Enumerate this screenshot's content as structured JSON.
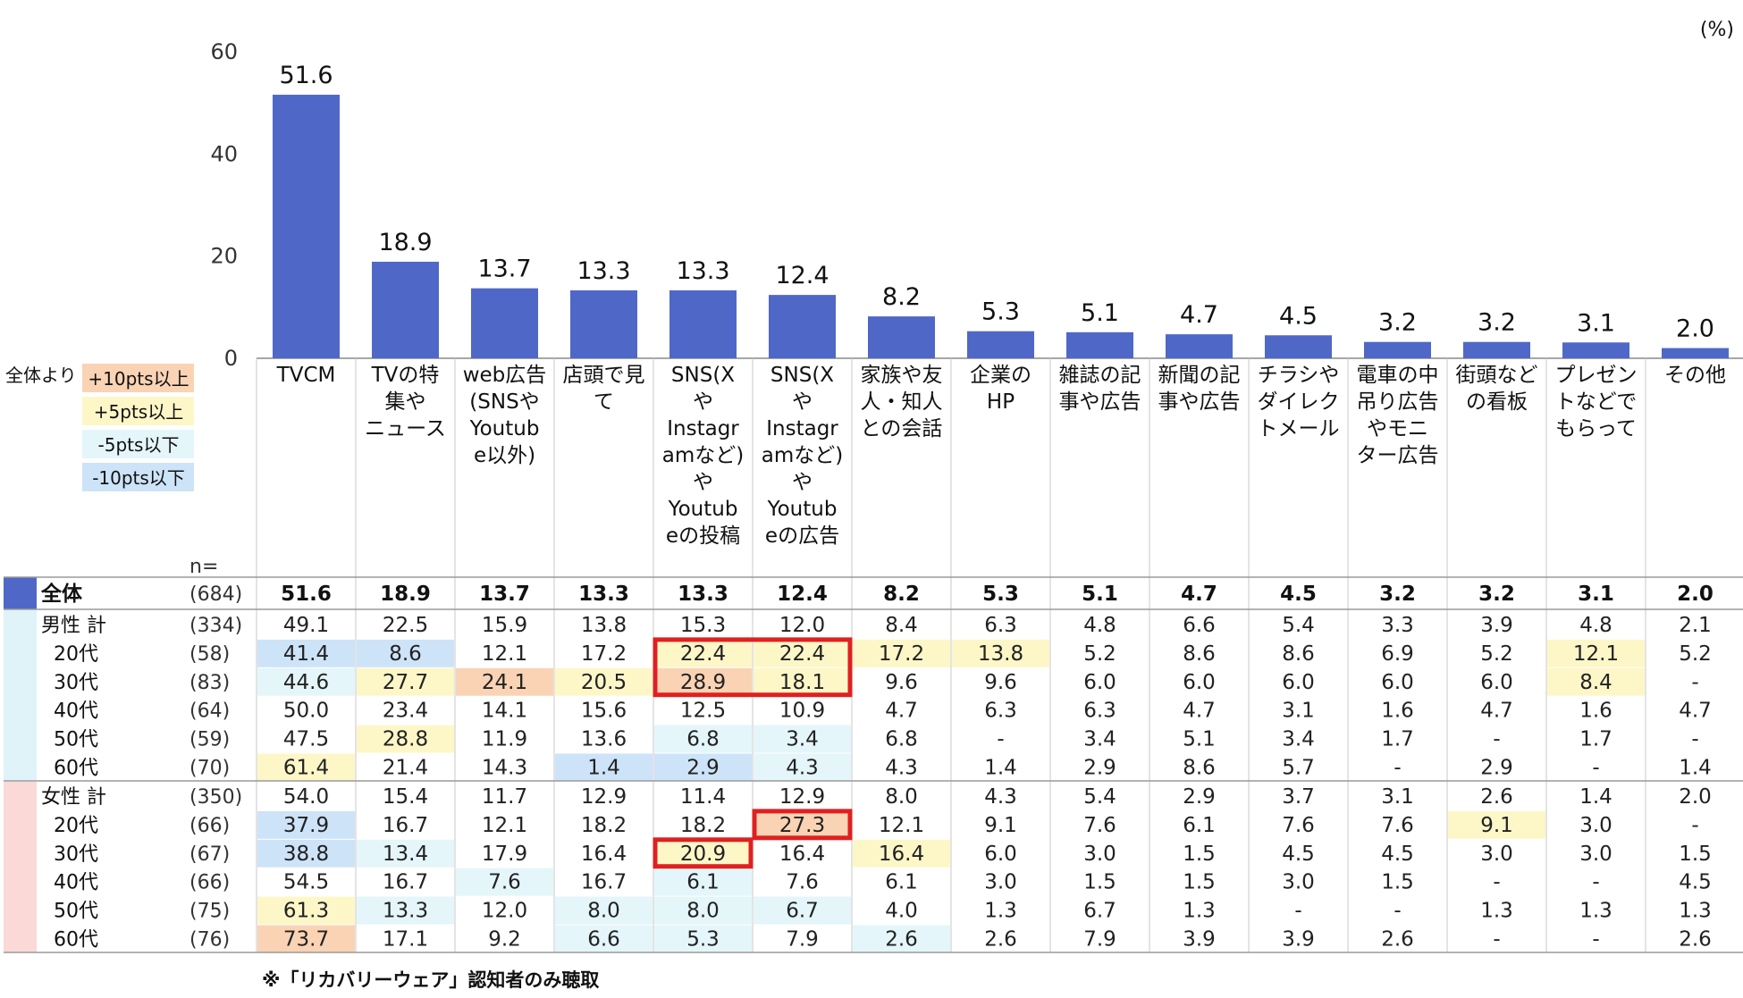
{
  "unit_label": "(%)",
  "n_label": "n=",
  "footnote": "※「リカバリーウェア」認知者のみ聴取",
  "legend": {
    "title": "全体より",
    "items": [
      {
        "label": "+10pts以上",
        "color": "#f9d3b4"
      },
      {
        "label": "+5pts以上",
        "color": "#fdf7c8"
      },
      {
        "label": "-5pts以下",
        "color": "#e4f6fa"
      },
      {
        "label": "-10pts以下",
        "color": "#cde3f8"
      }
    ]
  },
  "colors": {
    "bar": "#4f68c7",
    "plus10": "#f9d3b4",
    "plus5": "#fdf7c8",
    "minus5": "#e4f6fa",
    "minus10": "#cde3f8",
    "male_group": "#dff3f9",
    "female_group": "#fbd9d6",
    "highlight": "#e02020"
  },
  "chart_data": {
    "type": "bar",
    "categories": [
      "TVCM",
      "TVの特\n集や\nニュース",
      "web広告\n(SNSや\nYoutub\ne以外)",
      "店頭で見\nて",
      "SNS(X\nや\nInstagr\namなど)\nや\nYoutub\neの投稿",
      "SNS(X\nや\nInstagr\namなど)\nや\nYoutub\neの広告",
      "家族や友\n人・知人\nとの会話",
      "企業の\nHP",
      "雑誌の記\n事や広告",
      "新聞の記\n事や広告",
      "チラシや\nダイレク\nトメール",
      "電車の中\n吊り広告\nやモニ\nター広告",
      "街頭など\nの看板",
      "プレゼン\nトなどで\nもらって",
      "その他"
    ],
    "values": [
      51.6,
      18.9,
      13.7,
      13.3,
      13.3,
      12.4,
      8.2,
      5.3,
      5.1,
      4.7,
      4.5,
      3.2,
      3.2,
      3.1,
      2.0
    ],
    "ylim": [
      0,
      60
    ],
    "yticks": [
      0,
      20,
      40,
      60
    ],
    "table": [
      {
        "label": "全体",
        "n": "(684)",
        "group": "total",
        "values": [
          "51.6",
          "18.9",
          "13.7",
          "13.3",
          "13.3",
          "12.4",
          "8.2",
          "5.3",
          "5.1",
          "4.7",
          "4.5",
          "3.2",
          "3.2",
          "3.1",
          "2.0"
        ]
      },
      {
        "label": "男性 計",
        "n": "(334)",
        "group": "male",
        "values": [
          "49.1",
          "22.5",
          "15.9",
          "13.8",
          "15.3",
          "12.0",
          "8.4",
          "6.3",
          "4.8",
          "6.6",
          "5.4",
          "3.3",
          "3.9",
          "4.8",
          "2.1"
        ]
      },
      {
        "label": "20代",
        "n": "(58)",
        "group": "male",
        "values": [
          "41.4",
          "8.6",
          "12.1",
          "17.2",
          "22.4",
          "22.4",
          "17.2",
          "13.8",
          "5.2",
          "8.6",
          "8.6",
          "6.9",
          "5.2",
          "12.1",
          "5.2"
        ]
      },
      {
        "label": "30代",
        "n": "(83)",
        "group": "male",
        "values": [
          "44.6",
          "27.7",
          "24.1",
          "20.5",
          "28.9",
          "18.1",
          "9.6",
          "9.6",
          "6.0",
          "6.0",
          "6.0",
          "6.0",
          "6.0",
          "8.4",
          "-"
        ]
      },
      {
        "label": "40代",
        "n": "(64)",
        "group": "male",
        "values": [
          "50.0",
          "23.4",
          "14.1",
          "15.6",
          "12.5",
          "10.9",
          "4.7",
          "6.3",
          "6.3",
          "4.7",
          "3.1",
          "1.6",
          "4.7",
          "1.6",
          "4.7"
        ]
      },
      {
        "label": "50代",
        "n": "(59)",
        "group": "male",
        "values": [
          "47.5",
          "28.8",
          "11.9",
          "13.6",
          "6.8",
          "3.4",
          "6.8",
          "-",
          "3.4",
          "5.1",
          "3.4",
          "1.7",
          "-",
          "1.7",
          "-"
        ]
      },
      {
        "label": "60代",
        "n": "(70)",
        "group": "male",
        "values": [
          "61.4",
          "21.4",
          "14.3",
          "1.4",
          "2.9",
          "4.3",
          "4.3",
          "1.4",
          "2.9",
          "8.6",
          "5.7",
          "-",
          "2.9",
          "-",
          "1.4"
        ]
      },
      {
        "label": "女性 計",
        "n": "(350)",
        "group": "female",
        "values": [
          "54.0",
          "15.4",
          "11.7",
          "12.9",
          "11.4",
          "12.9",
          "8.0",
          "4.3",
          "5.4",
          "2.9",
          "3.7",
          "3.1",
          "2.6",
          "1.4",
          "2.0"
        ]
      },
      {
        "label": "20代",
        "n": "(66)",
        "group": "female",
        "values": [
          "37.9",
          "16.7",
          "12.1",
          "18.2",
          "18.2",
          "27.3",
          "12.1",
          "9.1",
          "7.6",
          "6.1",
          "7.6",
          "7.6",
          "9.1",
          "3.0",
          "-"
        ]
      },
      {
        "label": "30代",
        "n": "(67)",
        "group": "female",
        "values": [
          "38.8",
          "13.4",
          "17.9",
          "16.4",
          "20.9",
          "16.4",
          "16.4",
          "6.0",
          "3.0",
          "1.5",
          "4.5",
          "4.5",
          "3.0",
          "3.0",
          "1.5"
        ]
      },
      {
        "label": "40代",
        "n": "(66)",
        "group": "female",
        "values": [
          "54.5",
          "16.7",
          "7.6",
          "16.7",
          "6.1",
          "7.6",
          "6.1",
          "3.0",
          "1.5",
          "1.5",
          "3.0",
          "1.5",
          "-",
          "-",
          "4.5"
        ]
      },
      {
        "label": "50代",
        "n": "(75)",
        "group": "female",
        "values": [
          "61.3",
          "13.3",
          "12.0",
          "8.0",
          "8.0",
          "6.7",
          "4.0",
          "1.3",
          "6.7",
          "1.3",
          "-",
          "-",
          "1.3",
          "1.3",
          "1.3"
        ]
      },
      {
        "label": "60代",
        "n": "(76)",
        "group": "female",
        "values": [
          "73.7",
          "17.1",
          "9.2",
          "6.6",
          "5.3",
          "7.9",
          "2.6",
          "2.6",
          "7.9",
          "3.9",
          "3.9",
          "2.6",
          "-",
          "-",
          "2.6"
        ]
      }
    ],
    "highlighted_cells": [
      {
        "rows": [
          2,
          3
        ],
        "cols": [
          4,
          5
        ]
      },
      {
        "rows": [
          8
        ],
        "cols": [
          5
        ]
      },
      {
        "rows": [
          9
        ],
        "cols": [
          4
        ]
      }
    ]
  }
}
